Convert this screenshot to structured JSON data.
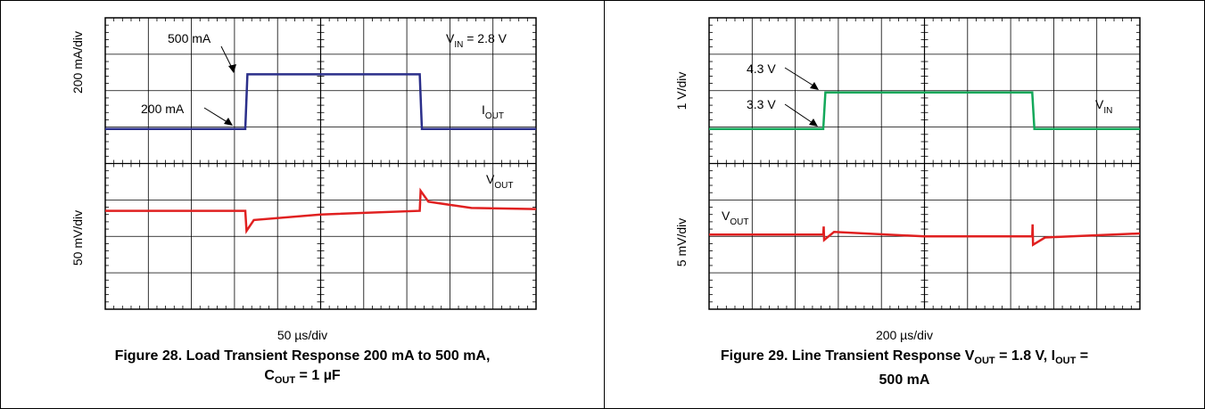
{
  "figures": [
    {
      "x_scale": "50 µs/div",
      "caption_line1": "Figure 28. Load Transient Response 200 mA to 500 mA,",
      "caption_line2_pre": "C",
      "caption_line2_sub": "OUT",
      "caption_line2_post": " = 1 µF",
      "top_axis_label": "200 mA/div",
      "bottom_axis_label": "50 mV/div",
      "annot_high": "500 mA",
      "annot_low": "200 mA",
      "cond_pre": "V",
      "cond_sub": "IN",
      "cond_post": " = 2.8 V",
      "top_trace_label_main": "I",
      "top_trace_label_sub": "OUT",
      "bottom_trace_label_main": "V",
      "bottom_trace_label_sub": "OUT"
    },
    {
      "x_scale": "200 µs/div",
      "caption_line1_a": "Figure 29. Line Transient Response V",
      "caption_line1_sub1": "OUT",
      "caption_line1_b": " = 1.8 V, I",
      "caption_line1_sub2": "OUT",
      "caption_line1_c": " =",
      "caption_line2": "500 mA",
      "top_axis_label": "1 V/div",
      "bottom_axis_label": "5 mV/div",
      "annot_high": "4.3 V",
      "annot_low": "3.3 V",
      "top_trace_label_main": "V",
      "top_trace_label_sub": "IN",
      "bottom_trace_label_main": "V",
      "bottom_trace_label_sub": "OUT"
    }
  ],
  "chart_data": [
    {
      "type": "line",
      "x_divisions": 10,
      "y_divisions": 8,
      "x_unit": "div",
      "series": [
        {
          "name": "IOUT",
          "color": "#2b2f8a",
          "units": "mA",
          "points": [
            [
              0,
              200
            ],
            [
              3.25,
              200
            ],
            [
              3.3,
              500
            ],
            [
              7.3,
              500
            ],
            [
              7.35,
              200
            ],
            [
              10,
              200
            ]
          ]
        },
        {
          "name": "VOUT",
          "color": "#e02020",
          "units": "div offset",
          "points": [
            [
              0,
              0
            ],
            [
              3.25,
              0
            ],
            [
              3.28,
              -0.55
            ],
            [
              3.45,
              -0.25
            ],
            [
              5,
              -0.1
            ],
            [
              7.3,
              0
            ],
            [
              7.32,
              0.55
            ],
            [
              7.5,
              0.25
            ],
            [
              8.5,
              0.08
            ],
            [
              10,
              0.05
            ]
          ]
        }
      ]
    },
    {
      "type": "line",
      "x_divisions": 10,
      "y_divisions": 8,
      "x_unit": "div",
      "series": [
        {
          "name": "VIN",
          "color": "#13a85a",
          "units": "V",
          "points": [
            [
              0,
              3.3
            ],
            [
              2.65,
              3.3
            ],
            [
              2.7,
              4.3
            ],
            [
              7.5,
              4.3
            ],
            [
              7.55,
              3.3
            ],
            [
              10,
              3.3
            ]
          ]
        },
        {
          "name": "VOUT",
          "color": "#e02020",
          "units": "div offset",
          "points": [
            [
              0,
              0
            ],
            [
              2.65,
              0
            ],
            [
              2.66,
              0.22
            ],
            [
              2.67,
              -0.15
            ],
            [
              2.9,
              0.07
            ],
            [
              5,
              -0.05
            ],
            [
              7.5,
              -0.05
            ],
            [
              7.51,
              0.28
            ],
            [
              7.52,
              -0.28
            ],
            [
              7.8,
              -0.08
            ],
            [
              10,
              0.03
            ]
          ]
        }
      ]
    }
  ]
}
